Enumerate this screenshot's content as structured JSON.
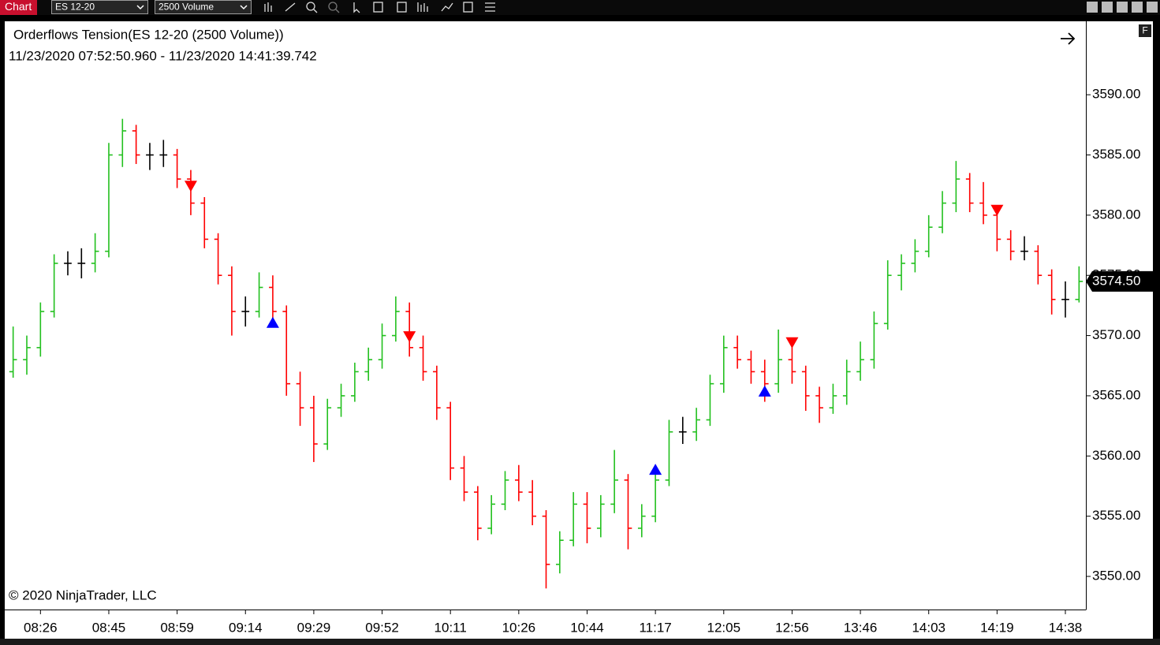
{
  "ui": {
    "tab": "Chart",
    "instrument": "ES 12-20",
    "interval": "2500 Volume",
    "f_button": "F"
  },
  "chart_data": {
    "type": "ohlc",
    "title": "Orderflows Tension(ES 12-20 (2500 Volume))",
    "subtitle": "11/23/2020 07:52:50.960 - 11/23/2020 14:41:39.742",
    "annotation": "© 2020 NinjaTrader, LLC",
    "categories": [
      null,
      null,
      "08:26",
      null,
      null,
      null,
      null,
      "08:45",
      null,
      null,
      null,
      null,
      "08:59",
      null,
      null,
      null,
      null,
      "09:14",
      null,
      null,
      null,
      null,
      "09:29",
      null,
      null,
      null,
      null,
      "09:52",
      null,
      null,
      null,
      null,
      "10:11",
      null,
      null,
      null,
      null,
      "10:26",
      null,
      null,
      null,
      null,
      "10:44",
      null,
      null,
      null,
      null,
      "11:17",
      null,
      null,
      null,
      null,
      "12:05",
      null,
      null,
      null,
      null,
      "12:56",
      null,
      null,
      null,
      null,
      "13:46",
      null,
      null,
      null,
      null,
      "14:03",
      null,
      null,
      null,
      null,
      "14:19",
      null,
      null,
      null,
      null,
      "14:38",
      null
    ],
    "open": [
      3567,
      3568,
      3569,
      3572,
      3576,
      3576,
      3576,
      3577,
      3585,
      3587,
      3585,
      3585,
      3585,
      3583,
      3581,
      3578,
      3575,
      3572,
      3572,
      3574,
      3572,
      3566,
      3564,
      3561,
      3564,
      3565,
      3567,
      3568,
      3570,
      3572,
      3569,
      3567,
      3564,
      3559,
      3557,
      3554,
      3556,
      3558,
      3557,
      3555,
      3551,
      3553,
      3556,
      3554,
      3556,
      3558,
      3554,
      3555,
      3558,
      3562,
      3562,
      3563,
      3566,
      3569,
      3568,
      3567,
      3566,
      3568,
      3567,
      3565,
      3564,
      3565,
      3567,
      3568,
      3571,
      3575,
      3576,
      3577,
      3579,
      3581,
      3583,
      3581,
      3580,
      3578,
      3577,
      3577,
      3575,
      3573,
      3573
    ],
    "high": [
      3570.75,
      3570,
      3572.75,
      3576.75,
      3577,
      3577.25,
      3578.5,
      3586,
      3588,
      3587.5,
      3586,
      3586.25,
      3585.5,
      3583.75,
      3581.5,
      3578.5,
      3575.75,
      3573.25,
      3575.25,
      3575,
      3572.5,
      3567,
      3565,
      3564.75,
      3566,
      3567.75,
      3569,
      3571,
      3573.25,
      3572.75,
      3570,
      3567.5,
      3564.5,
      3560,
      3557.5,
      3556.75,
      3558.75,
      3559.25,
      3558,
      3555.5,
      3553.75,
      3557,
      3557,
      3556.75,
      3560.5,
      3558.5,
      3556,
      3558.75,
      3563,
      3563.25,
      3564,
      3566.75,
      3570,
      3570,
      3568.75,
      3568,
      3570.5,
      3569.25,
      3567.5,
      3565.75,
      3566,
      3568,
      3569.5,
      3572,
      3576.25,
      3576.75,
      3578,
      3580,
      3582,
      3584.5,
      3583.5,
      3582.75,
      3580.5,
      3578.75,
      3578.25,
      3577.5,
      3575.5,
      3574.5,
      3575.75
    ],
    "low": [
      3566.5,
      3566.75,
      3568.25,
      3571.5,
      3575,
      3574.75,
      3575.25,
      3576.5,
      3584,
      3584.25,
      3583.75,
      3584,
      3582.25,
      3580,
      3577.25,
      3574.25,
      3570,
      3570.75,
      3571.5,
      3571.25,
      3565,
      3562.5,
      3559.5,
      3560.5,
      3563.25,
      3564.5,
      3566.25,
      3567.25,
      3569.5,
      3568.25,
      3566.25,
      3563,
      3558,
      3556.25,
      3553,
      3553.5,
      3555.5,
      3556.25,
      3554.25,
      3549,
      3550.25,
      3552.5,
      3552.75,
      3553.25,
      3555.25,
      3552.25,
      3553.25,
      3554.5,
      3557.5,
      3561,
      3561.25,
      3562.5,
      3565.25,
      3567.25,
      3566,
      3564.5,
      3565.25,
      3566,
      3563.75,
      3562.75,
      3563.5,
      3564.25,
      3566.25,
      3567.25,
      3570.5,
      3573.75,
      3575.25,
      3576.5,
      3578.5,
      3580.25,
      3580.25,
      3579.25,
      3577,
      3576.25,
      3576.25,
      3574.25,
      3571.75,
      3571.5,
      3572.75
    ],
    "close": [
      3568,
      3569,
      3572,
      3576,
      3576,
      3576,
      3577,
      3585,
      3587,
      3585,
      3585,
      3585,
      3583,
      3581,
      3578,
      3575,
      3572,
      3572,
      3574,
      3572,
      3566,
      3564,
      3561,
      3564,
      3565,
      3567,
      3568,
      3570,
      3572,
      3569,
      3567,
      3564,
      3559,
      3557,
      3554,
      3556,
      3558,
      3557,
      3555,
      3551,
      3553,
      3556,
      3554,
      3556,
      3558,
      3554,
      3555,
      3558,
      3562,
      3562,
      3563,
      3566,
      3569,
      3568,
      3567,
      3566,
      3568,
      3567,
      3565,
      3564,
      3565,
      3567,
      3568,
      3571,
      3575,
      3576,
      3577,
      3579,
      3581,
      3583,
      3581,
      3580,
      3578,
      3577,
      3577,
      3575,
      3573,
      3573,
      3574.5
    ],
    "up_color": "#22c01e",
    "down_color": "#ff0000",
    "flat_color": "#000000",
    "signals": {
      "up": {
        "color": "#0000ff",
        "bars": [
          19,
          47,
          55
        ],
        "prices": [
          3571.1,
          3558.9,
          3565.4
        ]
      },
      "down": {
        "color": "#ff0000",
        "bars": [
          13,
          29,
          57,
          72
        ],
        "prices": [
          3582.4,
          3569.9,
          3569.4,
          3580.4
        ]
      }
    },
    "last_price": {
      "value": 3574.5,
      "label": "3574.50"
    },
    "ylim": [
      3547.25,
      3596.1
    ],
    "yticks": [
      {
        "value": 3550,
        "label": "3550.00"
      },
      {
        "value": 3555,
        "label": "3555.00"
      },
      {
        "value": 3560,
        "label": "3560.00"
      },
      {
        "value": 3565,
        "label": "3565.00"
      },
      {
        "value": 3570,
        "label": "3570.00"
      },
      {
        "value": 3575,
        "label": "3575.00"
      },
      {
        "value": 3580,
        "label": "3580.00"
      },
      {
        "value": 3585,
        "label": "3585.00"
      },
      {
        "value": 3590,
        "label": "3590.00"
      }
    ],
    "grid": false
  }
}
